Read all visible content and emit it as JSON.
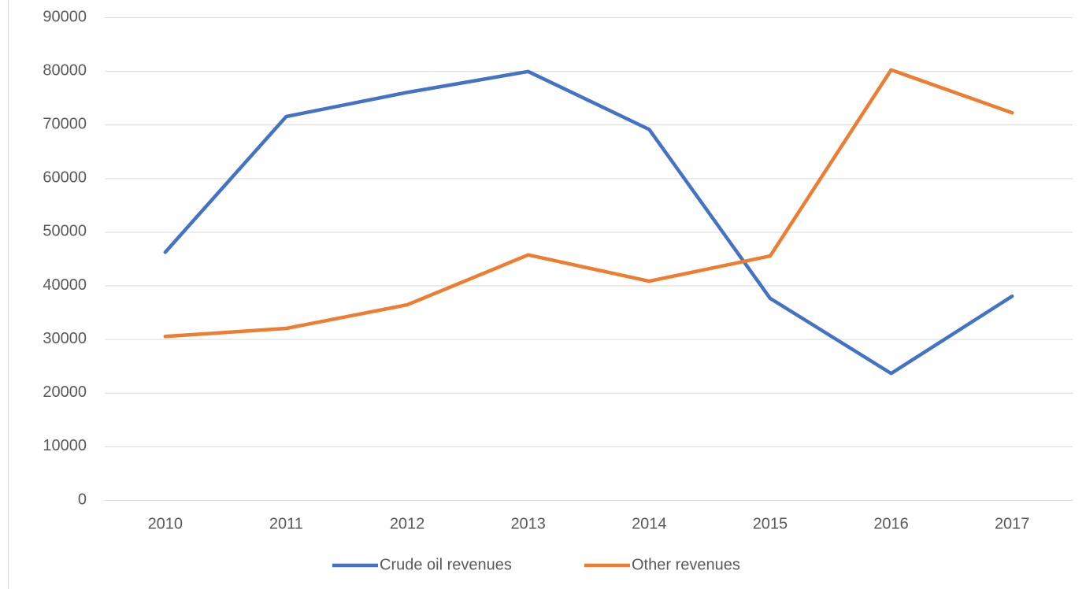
{
  "chart_data": {
    "type": "line",
    "categories": [
      "2010",
      "2011",
      "2012",
      "2013",
      "2014",
      "2015",
      "2016",
      "2017"
    ],
    "series": [
      {
        "name": "Crude oil revenues",
        "color": "#4472c4",
        "values": [
          46200,
          71500,
          76000,
          79900,
          69100,
          37600,
          23600,
          38000
        ]
      },
      {
        "name": "Other revenues",
        "color": "#ed7d31",
        "values": [
          30500,
          32000,
          36400,
          45700,
          40800,
          45500,
          80200,
          72200
        ]
      }
    ],
    "ylim": [
      0,
      90000
    ],
    "yticks": [
      0,
      10000,
      20000,
      30000,
      40000,
      50000,
      60000,
      70000,
      80000,
      90000
    ],
    "grid": true,
    "legend": "bottom"
  }
}
